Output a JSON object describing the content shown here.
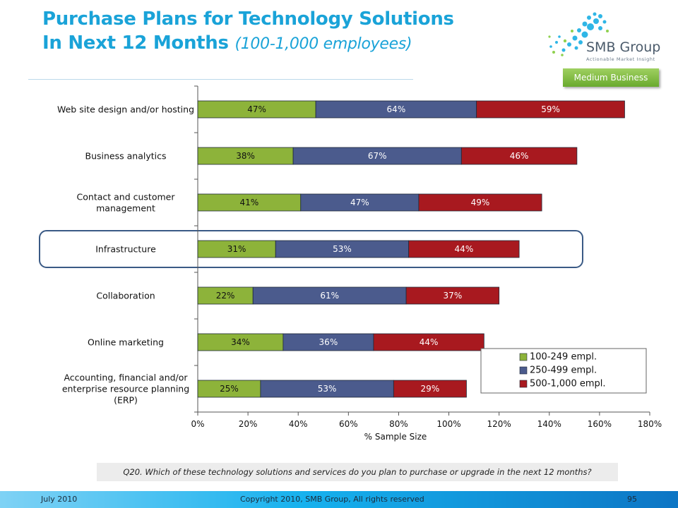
{
  "title": {
    "line1": "Purchase Plans for Technology Solutions",
    "line2_main": "In Next 12 Months",
    "line2_sub": "(100-1,000 employees)"
  },
  "logo": {
    "name": "SMB Group",
    "tagline": "Actionable Market Insight"
  },
  "badge": "Medium Business",
  "chart_data": {
    "type": "bar",
    "orientation": "horizontal",
    "stacked": true,
    "categories": [
      "Web site design and/or hosting",
      "Business analytics",
      "Contact and customer management",
      "Infrastructure",
      "Collaboration",
      "Online marketing",
      "Accounting, financial and/or enterprise resource planning (ERP)"
    ],
    "category_lines": [
      [
        "Web site design and/or hosting"
      ],
      [
        "Business analytics"
      ],
      [
        "Contact and customer",
        "management"
      ],
      [
        "Infrastructure"
      ],
      [
        "Collaboration"
      ],
      [
        "Online marketing"
      ],
      [
        "Accounting, financial and/or",
        "enterprise resource planning",
        "(ERP)"
      ]
    ],
    "series": [
      {
        "name": "100-249 empl.",
        "color": "#8db33a",
        "values": [
          47,
          38,
          41,
          31,
          22,
          34,
          25
        ]
      },
      {
        "name": "250-499 empl.",
        "color": "#4b5b8d",
        "values": [
          64,
          67,
          47,
          53,
          61,
          36,
          53
        ]
      },
      {
        "name": "500-1,000 empl.",
        "color": "#a8191f",
        "values": [
          59,
          46,
          49,
          44,
          37,
          44,
          29
        ]
      }
    ],
    "value_suffix": "%",
    "xlabel": "% Sample Size",
    "xlim": [
      0,
      180
    ],
    "xticks": [
      "0%",
      "20%",
      "40%",
      "60%",
      "80%",
      "100%",
      "120%",
      "140%",
      "160%",
      "180%"
    ],
    "legend_position": "bottom-right",
    "highlighted_category": "Infrastructure",
    "grid": false
  },
  "footnote": "Q20. Which of these technology solutions and services do you plan to purchase or upgrade in the next 12 months?",
  "footer": {
    "date": "July 2010",
    "copyright": "Copyright 2010, SMB Group, All rights reserved",
    "page": "95"
  }
}
